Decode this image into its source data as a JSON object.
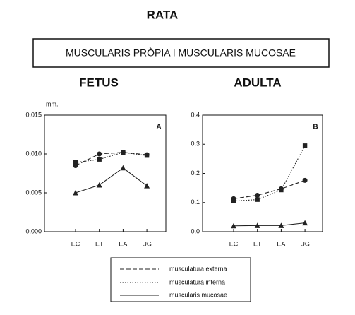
{
  "header": {
    "title": "RATA",
    "box": "MUSCULARIS PRÒPIA I MUSCULARIS MUCOSAE"
  },
  "chart_data": [
    {
      "type": "line",
      "title": "FETUS",
      "panel": "A",
      "ylabel": "mm.",
      "categories": [
        "EC",
        "ET",
        "EA",
        "UG"
      ],
      "ylim": [
        0,
        0.015
      ],
      "yticks": [
        {
          "value": 0,
          "label": "0.000"
        },
        {
          "value": 0.005,
          "label": "0.005"
        },
        {
          "value": 0.01,
          "label": "0.010"
        },
        {
          "value": 0.015,
          "label": "0.015"
        }
      ],
      "series": [
        {
          "name": "musculatura externa",
          "color": "#222",
          "dash": "dashed",
          "marker": "circle",
          "values": [
            0.0085,
            0.01,
            0.0102,
            0.0099
          ]
        },
        {
          "name": "musculatura interna",
          "color": "#222",
          "dash": "dotted",
          "marker": "square",
          "values": [
            0.0089,
            0.0093,
            0.0102,
            0.0098
          ]
        },
        {
          "name": "muscularis mucosae",
          "color": "#222",
          "dash": "solid",
          "marker": "triangle",
          "values": [
            0.005,
            0.006,
            0.0082,
            0.0059
          ]
        }
      ]
    },
    {
      "type": "line",
      "title": "ADULTA",
      "panel": "B",
      "categories": [
        "EC",
        "ET",
        "EA",
        "UG"
      ],
      "ylim": [
        0,
        0.4
      ],
      "yticks": [
        {
          "value": 0,
          "label": "0.0"
        },
        0.1,
        0.2,
        0.3,
        0.4
      ],
      "series": [
        {
          "name": "musculatura externa",
          "color": "#222",
          "dash": "dashed",
          "marker": "circle",
          "values": [
            0.113,
            0.125,
            0.147,
            0.176
          ]
        },
        {
          "name": "musculatura interna",
          "color": "#222",
          "dash": "dotted",
          "marker": "square",
          "values": [
            0.105,
            0.11,
            0.143,
            0.295
          ]
        },
        {
          "name": "muscularis mucosae",
          "color": "#222",
          "dash": "solid",
          "marker": "triangle",
          "values": [
            0.02,
            0.021,
            0.021,
            0.03
          ]
        }
      ]
    }
  ]
}
